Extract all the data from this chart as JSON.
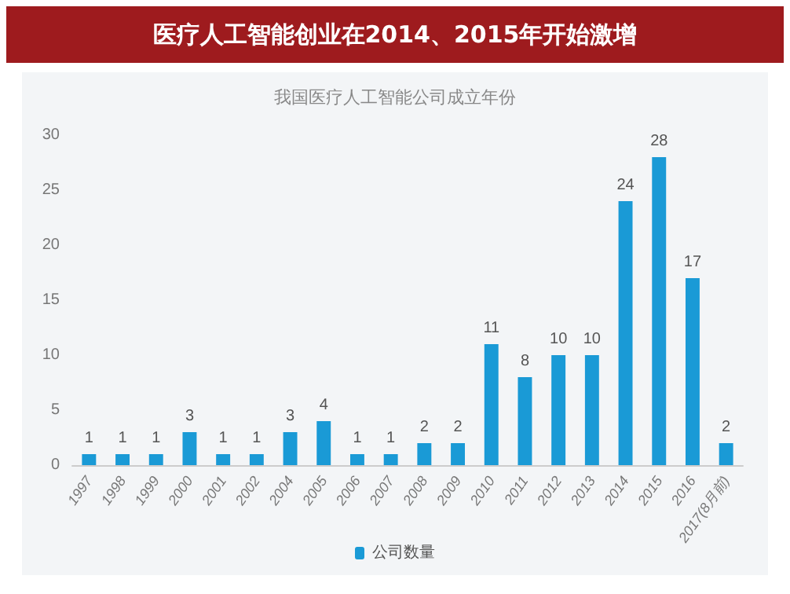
{
  "chart_data": {
    "type": "bar",
    "title": "医疗人工智能创业在2014、2015年开始激增",
    "subtitle": "我国医疗人工智能公司成立年份",
    "categories": [
      "1997",
      "1998",
      "1999",
      "2000",
      "2001",
      "2002",
      "2004",
      "2005",
      "2006",
      "2007",
      "2008",
      "2009",
      "2010",
      "2011",
      "2012",
      "2013",
      "2014",
      "2015",
      "2016",
      "2017(8月前)"
    ],
    "series": [
      {
        "name": "公司数量",
        "color": "#1a9ad6",
        "values": [
          1,
          1,
          1,
          3,
          1,
          1,
          3,
          4,
          1,
          1,
          2,
          2,
          11,
          8,
          10,
          10,
          24,
          28,
          17,
          2
        ]
      }
    ],
    "ylim": [
      0,
      30
    ],
    "yticks": [
      0,
      5,
      10,
      15,
      20,
      25,
      30
    ],
    "grid": false,
    "legend": "bottom",
    "data_labels": true
  }
}
